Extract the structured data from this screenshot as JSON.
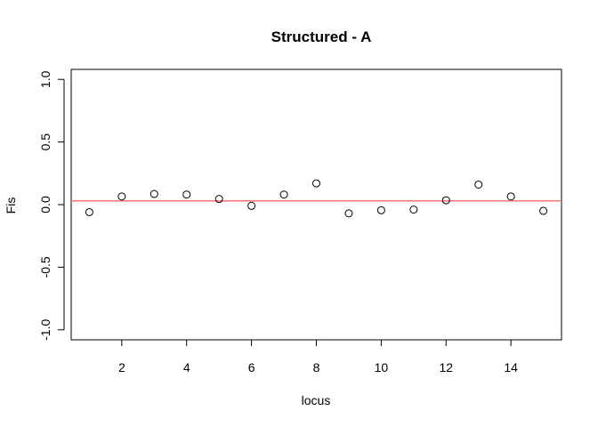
{
  "chart_data": {
    "type": "scatter",
    "title": "Structured - A",
    "xlabel": "locus",
    "ylabel": "Fis",
    "xlim": [
      0.44,
      15.56
    ],
    "ylim": [
      -1.08,
      1.08
    ],
    "x_ticks": [
      2,
      4,
      6,
      8,
      10,
      12,
      14
    ],
    "y_ticks": [
      -1.0,
      -0.5,
      0.0,
      0.5,
      1.0
    ],
    "y_tick_labels": [
      "-1.0",
      "-0.5",
      "0.0",
      "0.5",
      "1.0"
    ],
    "x": [
      1,
      2,
      3,
      4,
      5,
      6,
      7,
      8,
      9,
      10,
      11,
      12,
      13,
      14,
      15
    ],
    "y": [
      -0.06,
      0.065,
      0.085,
      0.08,
      0.045,
      -0.01,
      0.08,
      0.17,
      -0.07,
      -0.045,
      -0.04,
      0.035,
      0.16,
      0.065,
      -0.05
    ],
    "reference_line": {
      "y": 0.03,
      "color": "#f08080"
    },
    "grid": false
  }
}
